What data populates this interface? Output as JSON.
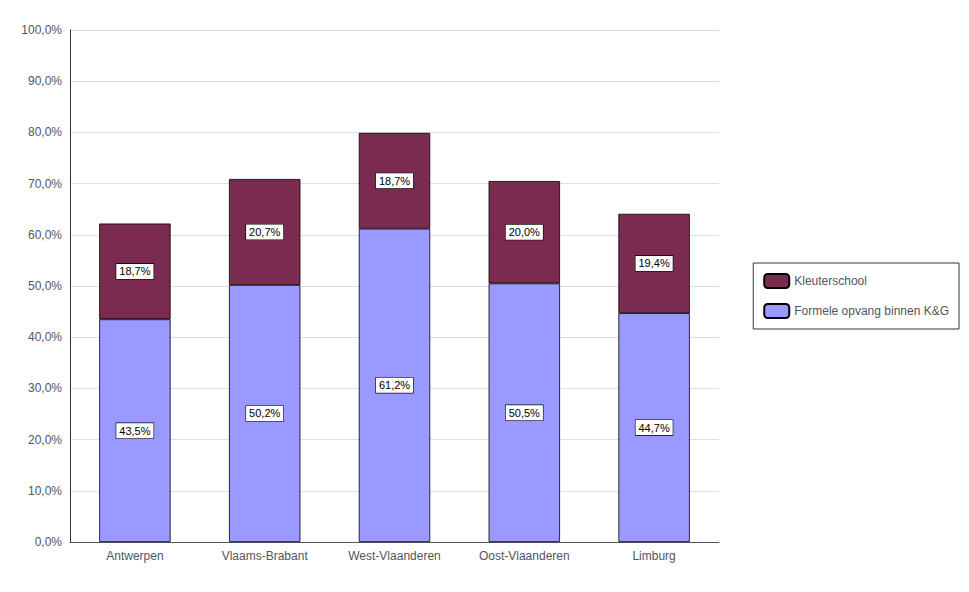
{
  "chart_data": {
    "type": "bar",
    "stacked": true,
    "categories": [
      "Antwerpen",
      "Vlaams-Brabant",
      "West-Vlaanderen",
      "Oost-Vlaanderen",
      "Limburg"
    ],
    "series": [
      {
        "name": "Formele opvang binnen K&G",
        "color": "#9999FF",
        "values": [
          43.5,
          50.2,
          61.2,
          50.5,
          44.7
        ],
        "value_labels": [
          "43,5%",
          "50,2%",
          "61,2%",
          "50,5%",
          "44,7%"
        ]
      },
      {
        "name": "Kleuterschool",
        "color": "#7B2B50",
        "values": [
          18.7,
          20.7,
          18.7,
          20.0,
          19.4
        ],
        "value_labels": [
          "18,7%",
          "20,7%",
          "18,7%",
          "20,0%",
          "19,4%"
        ]
      }
    ],
    "ylim": [
      0,
      100
    ],
    "yticks": [
      {
        "value": 0,
        "label": "0,0%"
      },
      {
        "value": 10,
        "label": "10,0%"
      },
      {
        "value": 20,
        "label": "20,0%"
      },
      {
        "value": 30,
        "label": "30,0%"
      },
      {
        "value": 40,
        "label": "40,0%"
      },
      {
        "value": 50,
        "label": "50,0%"
      },
      {
        "value": 60,
        "label": "60,0%"
      },
      {
        "value": 70,
        "label": "70,0%"
      },
      {
        "value": 80,
        "label": "80,0%"
      },
      {
        "value": 90,
        "label": "90,0%"
      },
      {
        "value": 100,
        "label": "100,0%"
      }
    ],
    "grid": true,
    "legend": "right",
    "data_labels": true
  }
}
